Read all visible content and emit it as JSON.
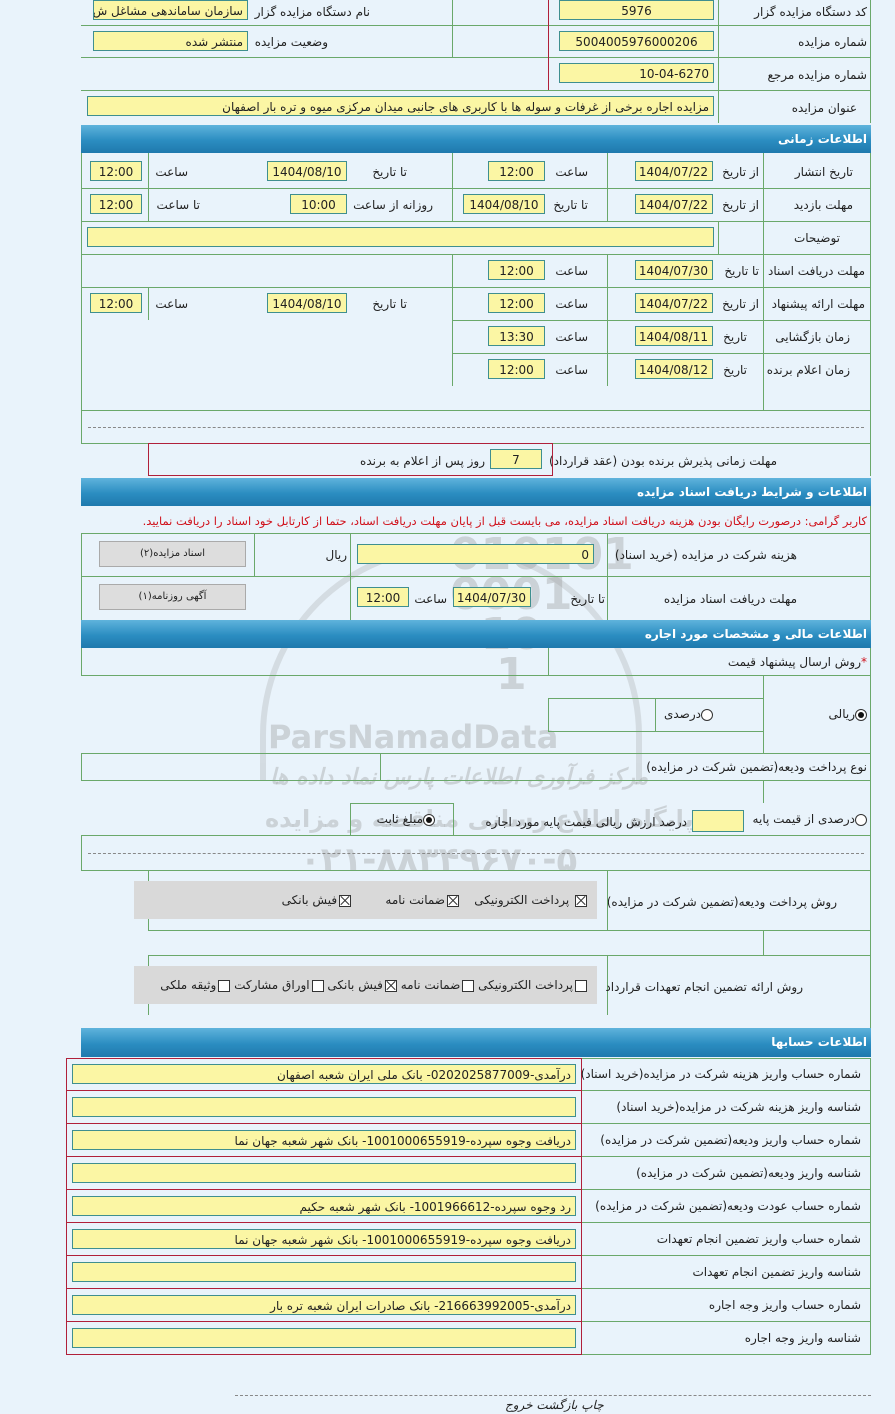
{
  "colors": {
    "header_bar": "#2b8dc1",
    "input_bg": "#fbf6a4",
    "page_bg": "#e9f3fb",
    "notice": "#d0101a"
  },
  "general": {
    "org_code_label": "کد دستگاه مزایده گزار",
    "org_code": "5976",
    "org_name_label": "نام دستگاه مزایده گزار",
    "org_name": "سازمان ساماندهی مشاغل ش",
    "auction_no_label": "شماره مزایده",
    "auction_no": "5004005976000206",
    "status_label": "وضعیت مزایده",
    "status": "منتشر شده",
    "ref_no_label": "شماره مزایده مرجع",
    "ref_no": "10-04-6270",
    "title_label": "عنوان مزایده",
    "title": "مزایده اجاره برخی از غرفات و سوله ها با کاربری های جانبی میدان مرکزی میوه و تره بار اصفهان"
  },
  "time": {
    "header": "اطلاعات زمانی",
    "publish": {
      "label": "تاریخ انتشار",
      "from_label": "از تاریخ",
      "from_date": "1404/07/22",
      "time_label": "ساعت",
      "from_time": "12:00",
      "to_label": "تا تاریخ",
      "to_date": "1404/08/10",
      "time_label2": "ساعت",
      "to_time": "12:00"
    },
    "visit": {
      "label": "مهلت بازدید",
      "from_label": "از تاریخ",
      "from_date": "1404/07/22",
      "to_label": "تا تاریخ",
      "to_date": "1404/08/10",
      "daily_label": "روزانه از ساعت",
      "daily_from": "10:00",
      "to_time_label": "تا ساعت",
      "daily_to": "12:00"
    },
    "desc_label": "توضیحات",
    "desc": "",
    "doc_deadline": {
      "label": "مهلت دریافت اسناد",
      "to_label": "تا تاریخ",
      "date": "1404/07/30",
      "time_label": "ساعت",
      "time": "12:00"
    },
    "offer": {
      "label": "مهلت ارائه پیشنهاد",
      "from_label": "از تاریخ",
      "from_date": "1404/07/22",
      "time_label": "ساعت",
      "from_time": "12:00",
      "to_label": "تا تاریخ",
      "to_date": "1404/08/10",
      "time_label2": "ساعت",
      "to_time": "12:00"
    },
    "opening": {
      "label": "زمان بازگشایی",
      "date_label": "تاریخ",
      "date": "1404/08/11",
      "time_label": "ساعت",
      "time": "13:30"
    },
    "winner": {
      "label": "زمان اعلام برنده",
      "date_label": "تاریخ",
      "date": "1404/08/12",
      "time_label": "ساعت",
      "time": "12:00"
    },
    "accept": {
      "label": "مهلت زمانی پذیرش برنده بودن (عقد قرارداد)",
      "days": "7",
      "suffix": "روز پس از اعلام به برنده"
    }
  },
  "docs": {
    "header": "اطلاعات و شرایط دریافت اسناد مزایده",
    "notice": "کاربر گرامی: درصورت رایگان بودن هزینه دریافت اسناد مزایده، می بایست قبل از پایان مهلت دریافت اسناد، حتما از کارتابل خود اسناد را دریافت نمایید.",
    "fee_label": "هزینه شرکت در مزایده (خرید اسناد)",
    "fee": "0",
    "currency": "ریال",
    "docs_button": "اسناد مزایده(۲)",
    "deadline_label": "مهلت دریافت اسناد مزایده",
    "to_label": "تا تاریخ",
    "date": "1404/07/30",
    "time_label": "ساعت",
    "time": "12:00",
    "ad_button": "آگهی روزنامه(۱)"
  },
  "finance": {
    "header": "اطلاعات مالی و مشخصات مورد اجاره",
    "method_label": "روش ارسال پیشنهاد قیمت",
    "required_mark": "*",
    "rial_label": "ریالی",
    "percent_label": "درصدی",
    "selected": "ریالی",
    "deposit_type_label": "نوع پرداخت ودیعه(تضمین شرکت در مزایده)",
    "pct_base_label": "درصدی از قیمت پایه",
    "pct_base_suffix": "درصد ارزش ریالی قیمت پایه مورد اجاره",
    "pct_value": "",
    "fixed_label": "مبلغ ثابت",
    "deposit_selected": "مبلغ ثابت",
    "deposit_methods_label": "روش پرداخت ودیعه(تضمین شرکت در مزایده)",
    "deposit_methods": [
      {
        "label": "پرداخت الکترونیکی",
        "checked": true
      },
      {
        "label": "ضمانت نامه",
        "checked": true
      },
      {
        "label": "فیش بانکی",
        "checked": true
      }
    ],
    "guarantee_label": "روش ارائه تضمین انجام تعهدات قرارداد",
    "guarantee_methods": [
      {
        "label": "پرداخت الکترونیکی",
        "checked": false
      },
      {
        "label": "ضمانت نامه",
        "checked": false
      },
      {
        "label": "فیش بانکی",
        "checked": true
      },
      {
        "label": "اوراق مشارکت",
        "checked": false
      },
      {
        "label": "وثیقه ملکی",
        "checked": false
      }
    ]
  },
  "accounts": {
    "header": "اطلاعات حسابها",
    "rows": [
      {
        "label": "شماره حساب واریز هزینه شرکت در مزایده(خرید اسناد)",
        "value": "درآمدی-0202025877009- بانک ملی ایران شعبه اصفهان"
      },
      {
        "label": "شناسه واریز هزینه شرکت در مزایده(خرید اسناد)",
        "value": ""
      },
      {
        "label": "شماره حساب واریز ودیعه(تضمین شرکت در مزایده)",
        "value": "دریافت وجوه سپرده-1001000655919- بانک شهر شعبه جهان نما"
      },
      {
        "label": "شناسه واریز ودیعه(تضمین شرکت در مزایده)",
        "value": ""
      },
      {
        "label": "شماره حساب عودت ودیعه(تضمین شرکت در مزایده)",
        "value": "رد وجوه سپرده-1001966612- بانک شهر شعبه حکیم"
      },
      {
        "label": "شماره حساب واریز تضمین انجام تعهدات",
        "value": "دریافت وجوه سپرده-1001000655919- بانک شهر شعبه جهان نما"
      },
      {
        "label": "شناسه واریز تضمین انجام تعهدات",
        "value": ""
      },
      {
        "label": "شماره حساب واریز وجه اجاره",
        "value": "درآمدی-216663992005- بانک صادرات ایران شعبه تره بار"
      },
      {
        "label": "شناسه واریز وجه اجاره",
        "value": ""
      }
    ]
  },
  "footer": {
    "print": "چاپ",
    "back": "بازگشت",
    "exit": "خروج"
  },
  "watermark": {
    "brand": "ParsNamadData",
    "line1": "مرکز فرآوری اطلاعات پارس نماد داده ها",
    "line2": "پایگاه اطلاع رسانی مناقصه و مزایده",
    "phone": "۰۲۱-۸۸۳۴۹۶۷۰-۵"
  }
}
